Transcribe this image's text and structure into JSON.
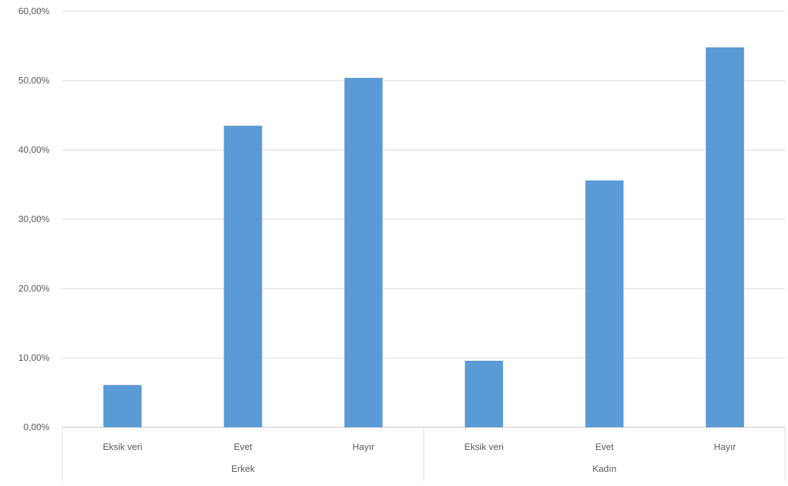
{
  "chart_data": {
    "type": "bar",
    "groups": [
      {
        "name": "Erkek",
        "categories": [
          "Eksik veri",
          "Evet",
          "Hayır"
        ]
      },
      {
        "name": "Kadın",
        "categories": [
          "Eksik veri",
          "Evet",
          "Hayır"
        ]
      }
    ],
    "categories": [
      "Eksik veri",
      "Evet",
      "Hayır",
      "Eksik veri",
      "Evet",
      "Hayır"
    ],
    "values": [
      6.1,
      43.5,
      50.4,
      9.6,
      35.6,
      54.8
    ],
    "y_ticks": [
      "0,00%",
      "10,00%",
      "20,00%",
      "30,00%",
      "40,00%",
      "50,00%",
      "60,00%"
    ],
    "ylim": [
      0,
      60
    ],
    "grid": true,
    "bar_color": "#5b9bd5",
    "title": "",
    "xlabel": "",
    "ylabel": ""
  }
}
